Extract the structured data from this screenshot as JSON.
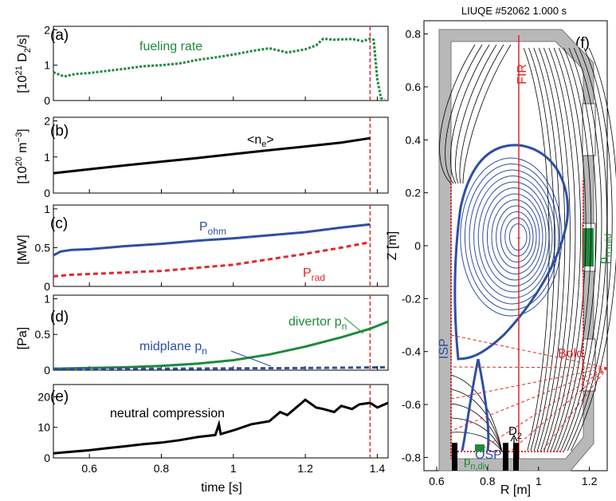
{
  "chart_data": [
    {
      "panel": "(a)",
      "type": "line",
      "ylabel": "[10^21 D_2/s]",
      "xlim": [
        0.5,
        1.43
      ],
      "ylim": [
        0,
        2.1
      ],
      "yticks": [
        "0",
        "1",
        "2"
      ],
      "annotations": [
        "fueling rate"
      ],
      "series": [
        {
          "name": "fueling rate",
          "color": "#1e8a3c",
          "style": "dotted",
          "x": [
            0.5,
            0.53,
            0.56,
            0.6,
            0.65,
            0.7,
            0.75,
            0.8,
            0.85,
            0.9,
            0.95,
            1.0,
            1.05,
            1.1,
            1.15,
            1.2,
            1.23,
            1.25,
            1.28,
            1.3,
            1.33,
            1.36,
            1.38,
            1.39,
            1.4,
            1.41,
            1.42
          ],
          "y": [
            0.8,
            0.68,
            0.75,
            0.78,
            0.84,
            0.9,
            0.97,
            1.0,
            1.05,
            1.15,
            1.22,
            1.3,
            1.4,
            1.48,
            1.36,
            1.45,
            1.56,
            1.75,
            1.72,
            1.73,
            1.74,
            1.68,
            1.75,
            1.72,
            0.6,
            0.07,
            0.03
          ]
        }
      ]
    },
    {
      "panel": "(b)",
      "type": "line",
      "ylabel": "[10^20 m^-3]",
      "xlim": [
        0.5,
        1.43
      ],
      "ylim": [
        0,
        2.1
      ],
      "yticks": [
        "0",
        "1",
        "2"
      ],
      "annotations": [
        "<n_e>"
      ],
      "series": [
        {
          "name": "<n_e>",
          "color": "#000000",
          "style": "solid",
          "x": [
            0.5,
            0.6,
            0.7,
            0.8,
            0.9,
            1.0,
            1.1,
            1.2,
            1.3,
            1.38
          ],
          "y": [
            0.55,
            0.66,
            0.77,
            0.87,
            0.97,
            1.08,
            1.19,
            1.29,
            1.4,
            1.52
          ]
        }
      ]
    },
    {
      "panel": "(c)",
      "type": "line",
      "ylabel": "[MW]",
      "xlim": [
        0.5,
        1.43
      ],
      "ylim": [
        0,
        1.05
      ],
      "yticks": [
        "0",
        "0.5",
        "1"
      ],
      "annotations": [
        "P_ohm",
        "P_rad"
      ],
      "series": [
        {
          "name": "P_ohm",
          "color": "#2d4fa3",
          "style": "solid",
          "x": [
            0.5,
            0.52,
            0.55,
            0.6,
            0.7,
            0.8,
            0.9,
            1.0,
            1.1,
            1.2,
            1.3,
            1.38
          ],
          "y": [
            0.4,
            0.45,
            0.47,
            0.48,
            0.52,
            0.55,
            0.59,
            0.62,
            0.66,
            0.7,
            0.76,
            0.8
          ]
        }
      ],
      "series2": [
        {
          "name": "P_rad",
          "color": "#e2262b",
          "style": "dashed",
          "x": [
            0.5,
            0.55,
            0.6,
            0.7,
            0.8,
            0.9,
            1.0,
            1.1,
            1.2,
            1.3,
            1.38
          ],
          "y": [
            0.13,
            0.15,
            0.16,
            0.18,
            0.2,
            0.24,
            0.28,
            0.35,
            0.42,
            0.5,
            0.57
          ]
        }
      ]
    },
    {
      "panel": "(d)",
      "type": "line",
      "ylabel": "[Pa]",
      "xlim": [
        0.5,
        1.43
      ],
      "ylim": [
        0,
        1.05
      ],
      "yticks": [
        "0",
        "0.5",
        "1"
      ],
      "annotations": [
        "divertor p_n",
        "midplane p_n"
      ],
      "series": [
        {
          "name": "divertor p_n",
          "color": "#1e8a3c",
          "style": "solid",
          "x": [
            0.5,
            0.6,
            0.7,
            0.8,
            0.9,
            1.0,
            1.1,
            1.2,
            1.3,
            1.38,
            1.43
          ],
          "y": [
            0.02,
            0.03,
            0.04,
            0.06,
            0.09,
            0.14,
            0.22,
            0.33,
            0.46,
            0.58,
            0.68
          ]
        }
      ],
      "series2": [
        {
          "name": "midplane p_n",
          "color": "#2d4fa3",
          "style": "dashed",
          "x": [
            0.5,
            0.8,
            1.0,
            1.2,
            1.43
          ],
          "y": [
            0.02,
            0.02,
            0.025,
            0.03,
            0.04
          ]
        }
      ]
    },
    {
      "panel": "(e)",
      "type": "line",
      "xlabel": "time [s]",
      "xlim": [
        0.5,
        1.43
      ],
      "ylim": [
        0,
        24
      ],
      "yticks": [
        "0",
        "10",
        "20"
      ],
      "xticks": [
        "0.6",
        "0.8",
        "1",
        "1.2",
        "1.4"
      ],
      "annotations": [
        "neutral compression"
      ],
      "series": [
        {
          "name": "neutral compression",
          "color": "#000000",
          "style": "solid",
          "x": [
            0.5,
            0.55,
            0.6,
            0.65,
            0.7,
            0.75,
            0.8,
            0.85,
            0.9,
            0.95,
            0.96,
            0.965,
            1.0,
            1.05,
            1.1,
            1.13,
            1.15,
            1.18,
            1.2,
            1.23,
            1.25,
            1.28,
            1.3,
            1.33,
            1.35,
            1.38,
            1.4,
            1.43
          ],
          "y": [
            1.5,
            2.0,
            2.5,
            3.2,
            3.8,
            4.5,
            5.0,
            5.8,
            6.8,
            7.5,
            11.0,
            7.8,
            9.0,
            11.0,
            12.0,
            15.0,
            14.0,
            17.0,
            19.0,
            16.5,
            16.0,
            15.0,
            17.0,
            16.0,
            17.5,
            18.0,
            16.5,
            18.0
          ]
        }
      ]
    },
    {
      "panel": "(f)",
      "type": "scatter",
      "title": "LIUQE #52062 1.000 s",
      "xlabel": "R [m]",
      "ylabel": "Z [m]",
      "xlim": [
        0.55,
        1.27
      ],
      "ylim": [
        -0.85,
        0.85
      ],
      "xticks": [
        "0.6",
        "0.8",
        "1",
        "1.2"
      ],
      "yticks": [
        "-0.8",
        "-0.6",
        "-0.4",
        "-0.2",
        "0",
        "0.2",
        "0.4",
        "0.6",
        "0.8"
      ],
      "annotations": [
        "FIR",
        "Bolo",
        "ISP",
        "OSP",
        "D_2",
        "p_n,mid",
        "p_n,div"
      ]
    }
  ],
  "time_marker": 1.38,
  "colors": {
    "green": "#1e8a3c",
    "blue": "#2d4fa3",
    "red": "#e2262b",
    "black": "#000000",
    "vessel": "#b8b8b8"
  }
}
